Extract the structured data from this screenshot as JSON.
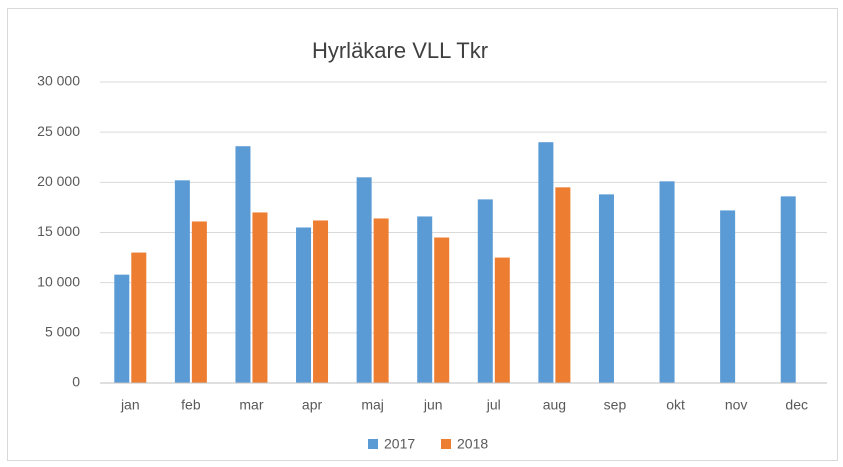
{
  "chart_data": {
    "type": "bar",
    "title": "Hyrläkare VLL Tkr",
    "categories": [
      "jan",
      "feb",
      "mar",
      "apr",
      "maj",
      "jun",
      "jul",
      "aug",
      "sep",
      "okt",
      "nov",
      "dec"
    ],
    "series": [
      {
        "name": "2017",
        "color": "#5b9bd5",
        "values": [
          10800,
          20200,
          23600,
          15500,
          20500,
          16600,
          18300,
          24000,
          18800,
          20100,
          17200,
          18600
        ]
      },
      {
        "name": "2018",
        "color": "#ed7d31",
        "values": [
          13000,
          16100,
          17000,
          16200,
          16400,
          14500,
          12500,
          19500,
          null,
          null,
          null,
          null
        ]
      }
    ],
    "ylim": [
      0,
      30000
    ],
    "yticks": [
      0,
      {
        "value": 5000,
        "label": "5 000"
      },
      {
        "value": 10000,
        "label": "10 000"
      },
      {
        "value": 15000,
        "label": "15 000"
      },
      {
        "value": 20000,
        "label": "20 000"
      },
      {
        "value": 25000,
        "label": "25 000"
      },
      {
        "value": 30000,
        "label": "30 000"
      }
    ],
    "grid": true,
    "legend": "bottom"
  }
}
